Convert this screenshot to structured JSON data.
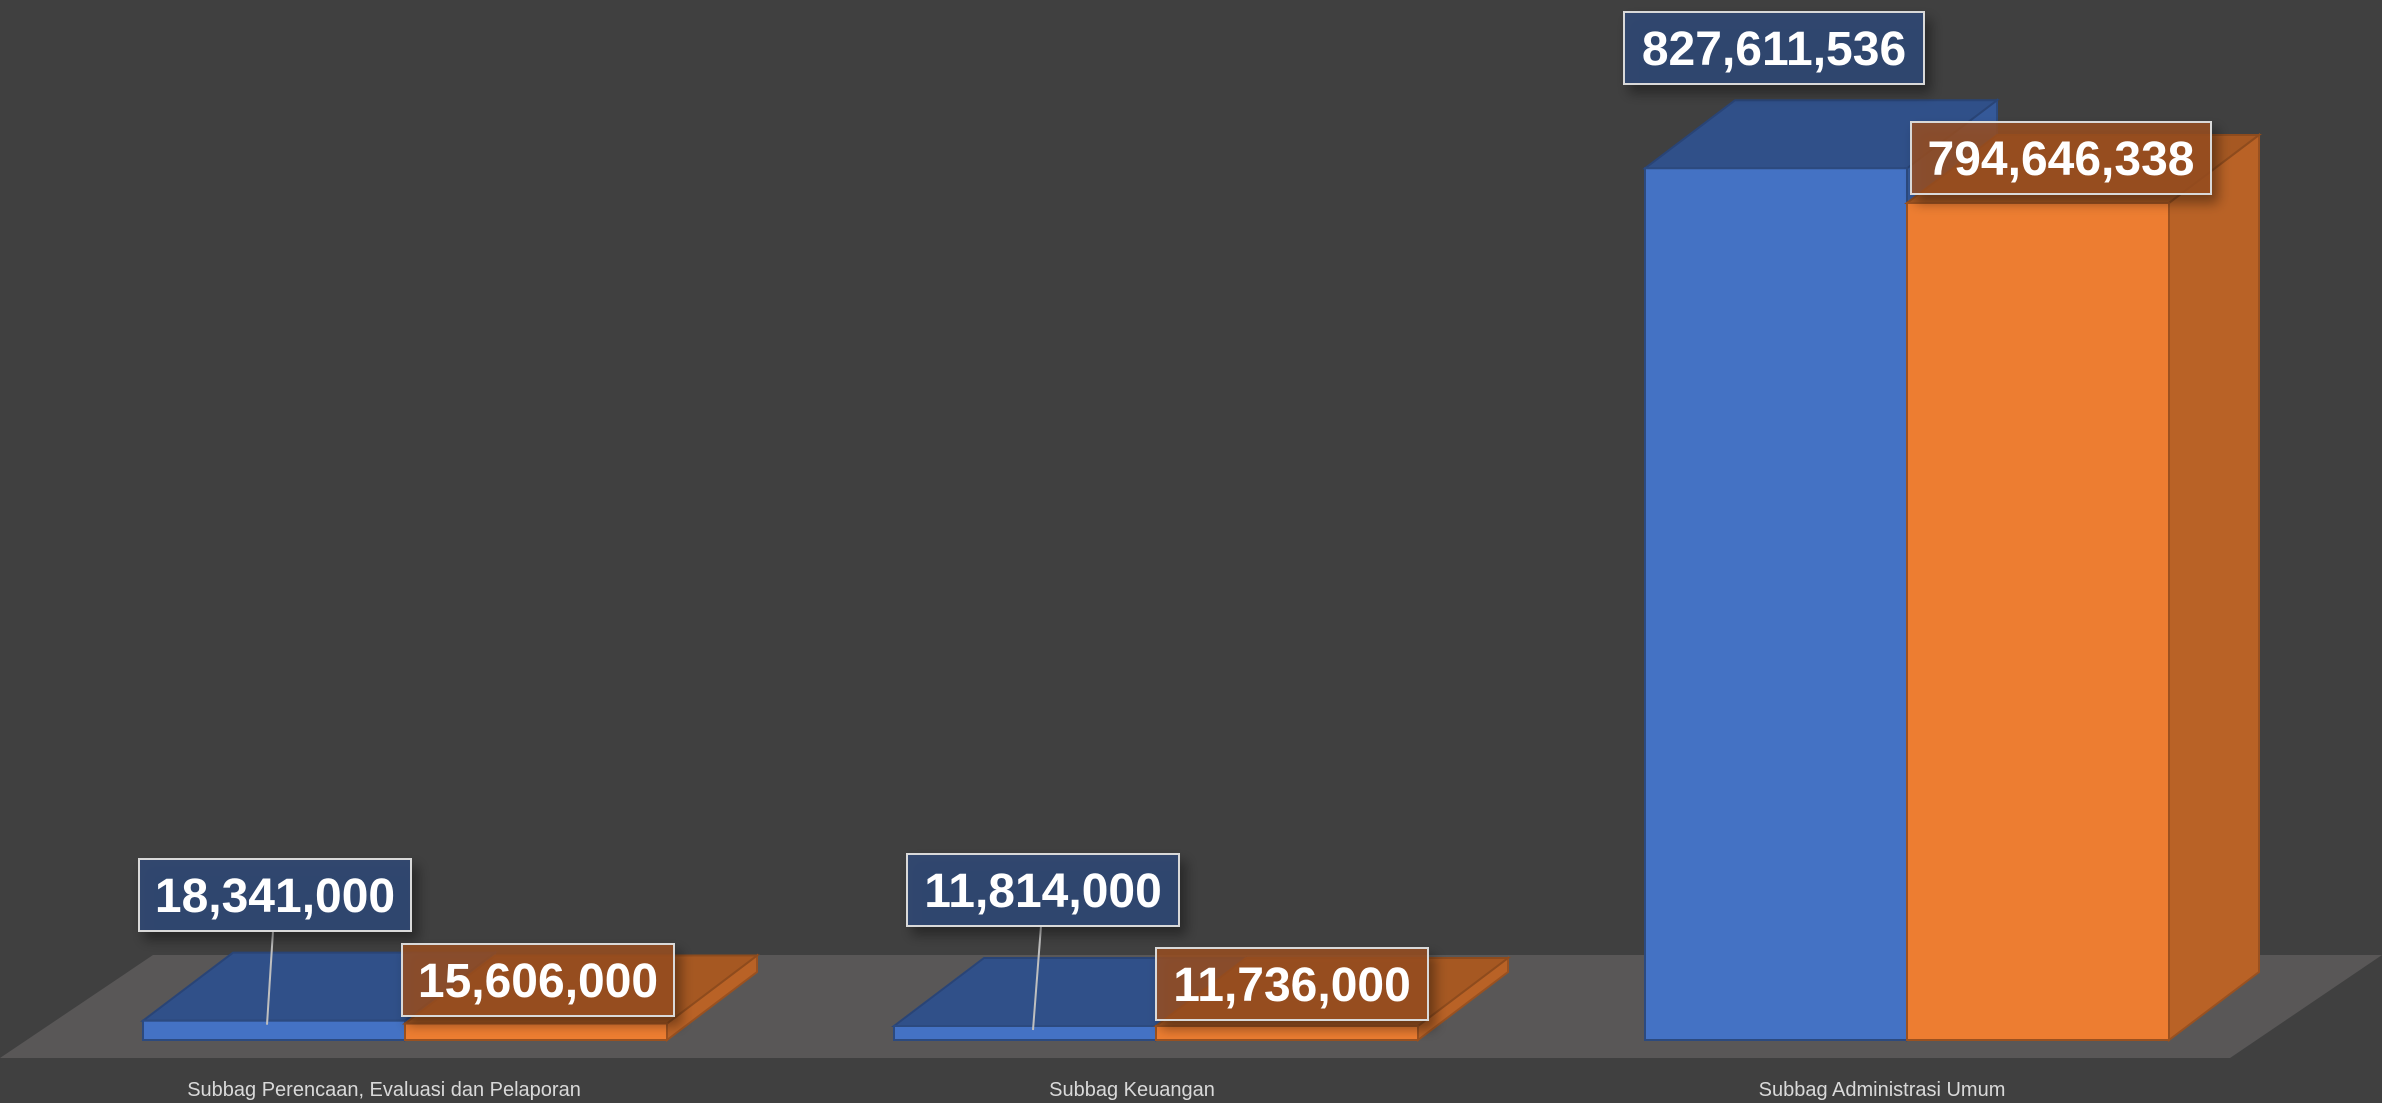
{
  "chart_data": {
    "type": "bar",
    "style": "3d-clustered-column",
    "categories": [
      "Subbag Perencaan, Evaluasi dan Pelaporan",
      "Subbag Keuangan",
      "Subbag Administrasi Umum"
    ],
    "series": [
      {
        "values": [
          18341000,
          11814000,
          827611536
        ],
        "labels": [
          "18,341,000",
          "11,814,000",
          "827,611,536"
        ],
        "color": "#4472C4"
      },
      {
        "values": [
          15606000,
          11736000,
          794646338
        ],
        "labels": [
          "15,606,000",
          "11,736,000",
          "794,646,338"
        ],
        "color": "#ED7D31"
      }
    ],
    "title": "",
    "xlabel": "",
    "ylabel": "",
    "ylim": [
      0,
      900000000
    ],
    "grid": false,
    "legend": "none",
    "data_labels": true,
    "background": "#404040",
    "floor_color": "#595757"
  }
}
